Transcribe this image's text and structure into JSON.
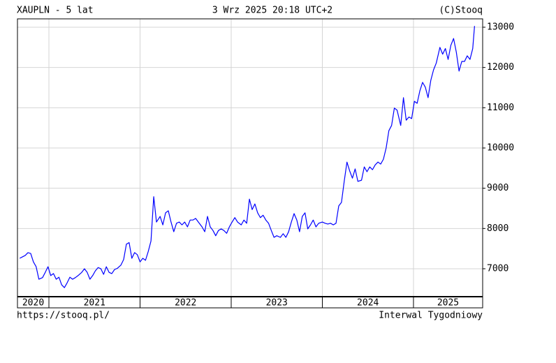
{
  "chart_data": {
    "type": "line",
    "title": "XAUPLN - 5 lat",
    "timestamp": "3 Wrz 2025 20:18 UTC+2",
    "copyright": "(C)Stooq",
    "source": "https://stooq.pl/",
    "interval": "Interwal Tygodniowy",
    "grid": true,
    "xlim": [
      2020.655,
      2025.759
    ],
    "xticks": [
      2020,
      2021,
      2022,
      2023,
      2024,
      2025
    ],
    "ylim": [
      6306,
      13208
    ],
    "yticks": [
      7000,
      8000,
      9000,
      10000,
      11000,
      12000,
      13000
    ],
    "x": [
      2020.68,
      2020.71,
      2020.74,
      2020.77,
      2020.8,
      2020.83,
      2020.86,
      2020.89,
      2020.93,
      2020.96,
      2020.99,
      2021.02,
      2021.05,
      2021.08,
      2021.11,
      2021.14,
      2021.17,
      2021.2,
      2021.23,
      2021.26,
      2021.29,
      2021.32,
      2021.36,
      2021.39,
      2021.42,
      2021.45,
      2021.48,
      2021.51,
      2021.54,
      2021.57,
      2021.6,
      2021.63,
      2021.66,
      2021.69,
      2021.72,
      2021.75,
      2021.79,
      2021.82,
      2021.85,
      2021.88,
      2021.91,
      2021.94,
      2021.97,
      2022.0,
      2022.03,
      2022.06,
      2022.09,
      2022.12,
      2022.15,
      2022.18,
      2022.22,
      2022.25,
      2022.28,
      2022.31,
      2022.34,
      2022.37,
      2022.4,
      2022.43,
      2022.46,
      2022.49,
      2022.52,
      2022.55,
      2022.58,
      2022.61,
      2022.64,
      2022.68,
      2022.71,
      2022.74,
      2022.77,
      2022.8,
      2022.83,
      2022.86,
      2022.89,
      2022.92,
      2022.95,
      2022.98,
      2023.01,
      2023.04,
      2023.07,
      2023.11,
      2023.14,
      2023.17,
      2023.2,
      2023.23,
      2023.26,
      2023.29,
      2023.32,
      2023.35,
      2023.38,
      2023.41,
      2023.44,
      2023.47,
      2023.5,
      2023.54,
      2023.57,
      2023.6,
      2023.63,
      2023.66,
      2023.69,
      2023.72,
      2023.75,
      2023.78,
      2023.81,
      2023.84,
      2023.87,
      2023.9,
      2023.93,
      2023.96,
      2024.0,
      2024.03,
      2024.06,
      2024.09,
      2024.12,
      2024.15,
      2024.18,
      2024.21,
      2024.24,
      2024.27,
      2024.3,
      2024.33,
      2024.36,
      2024.39,
      2024.43,
      2024.46,
      2024.49,
      2024.52,
      2024.55,
      2024.58,
      2024.61,
      2024.64,
      2024.67,
      2024.7,
      2024.73,
      2024.76,
      2024.79,
      2024.82,
      2024.86,
      2024.89,
      2024.92,
      2024.95,
      2024.98,
      2025.01,
      2025.04,
      2025.07,
      2025.1,
      2025.13,
      2025.16,
      2025.19,
      2025.22,
      2025.25,
      2025.29,
      2025.32,
      2025.35,
      2025.38,
      2025.41,
      2025.44,
      2025.47,
      2025.5,
      2025.53,
      2025.56,
      2025.59,
      2025.62,
      2025.65,
      2025.67
    ],
    "series": [
      {
        "color": "#0000ff",
        "values": [
          7260,
          7295,
          7330,
          7400,
          7380,
          7170,
          7050,
          6740,
          6780,
          6910,
          7050,
          6830,
          6880,
          6740,
          6790,
          6600,
          6530,
          6650,
          6790,
          6740,
          6780,
          6830,
          6910,
          7000,
          6910,
          6740,
          6830,
          6950,
          7030,
          7000,
          6860,
          7050,
          6910,
          6880,
          6980,
          7010,
          7090,
          7230,
          7610,
          7650,
          7260,
          7400,
          7350,
          7170,
          7260,
          7210,
          7430,
          7690,
          8790,
          8160,
          8300,
          8090,
          8390,
          8440,
          8160,
          7920,
          8130,
          8160,
          8090,
          8160,
          8040,
          8210,
          8210,
          8250,
          8160,
          8040,
          7920,
          8300,
          8040,
          7950,
          7820,
          7950,
          7990,
          7950,
          7880,
          8040,
          8160,
          8270,
          8160,
          8090,
          8210,
          8130,
          8730,
          8470,
          8610,
          8390,
          8270,
          8330,
          8210,
          8130,
          7950,
          7780,
          7820,
          7780,
          7870,
          7780,
          7920,
          8160,
          8370,
          8210,
          7920,
          8300,
          8390,
          7990,
          8090,
          8210,
          8040,
          8130,
          8160,
          8130,
          8110,
          8130,
          8090,
          8130,
          8560,
          8650,
          9170,
          9650,
          9430,
          9250,
          9480,
          9170,
          9200,
          9530,
          9410,
          9530,
          9460,
          9580,
          9650,
          9600,
          9720,
          10000,
          10430,
          10560,
          10990,
          10940,
          10560,
          11250,
          10690,
          10770,
          10730,
          11160,
          11110,
          11420,
          11630,
          11510,
          11250,
          11680,
          11940,
          12110,
          12500,
          12330,
          12470,
          12200,
          12550,
          12720,
          12380,
          11910,
          12150,
          12150,
          12290,
          12200,
          12470,
          13030
        ]
      }
    ]
  }
}
